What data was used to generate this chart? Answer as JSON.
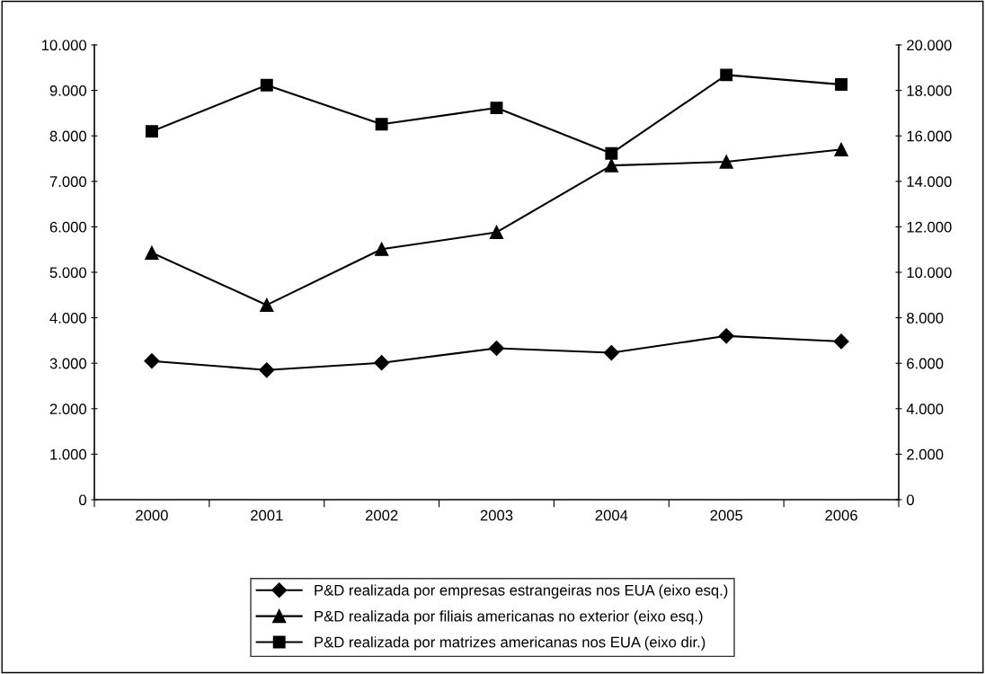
{
  "chart_data": {
    "type": "line",
    "categories": [
      "2000",
      "2001",
      "2002",
      "2003",
      "2004",
      "2005",
      "2006"
    ],
    "series": [
      {
        "name": "P&D realizada por empresas estrangeiras nos EUA (eixo esq.)",
        "color": "#000000",
        "marker": "diamond",
        "values": [
          3050,
          2850,
          3010,
          3330,
          3230,
          3600,
          3480
        ]
      },
      {
        "name": "P&D realizada por filiais americanas no exterior (eixo esq.)",
        "color": "#000000",
        "marker": "triangle",
        "values": [
          5430,
          4280,
          5510,
          5880,
          7350,
          7430,
          7700
        ]
      },
      {
        "name": "P&D realizada por matrizes americanas nos EUA (eixo dir.)",
        "color": "#000000",
        "marker": "square",
        "axis": "y2",
        "values": [
          16200,
          18230,
          16510,
          17230,
          15230,
          18680,
          18260
        ]
      }
    ],
    "ylim": [
      0,
      10000
    ],
    "yticks": [
      {
        "value": 0,
        "label": "0"
      },
      {
        "value": 1000,
        "label": "1.000"
      },
      {
        "value": 2000,
        "label": "2.000"
      },
      {
        "value": 3000,
        "label": "3.000"
      },
      {
        "value": 4000,
        "label": "4.000"
      },
      {
        "value": 5000,
        "label": "5.000"
      },
      {
        "value": 6000,
        "label": "6.000"
      },
      {
        "value": 7000,
        "label": "7.000"
      },
      {
        "value": 8000,
        "label": "8.000"
      },
      {
        "value": 9000,
        "label": "9.000"
      },
      {
        "value": 10000,
        "label": "10.000"
      }
    ],
    "y2lim": [
      0,
      20000
    ],
    "y2ticks": [
      {
        "value": 0,
        "label": "0"
      },
      {
        "value": 2000,
        "label": "2.000"
      },
      {
        "value": 4000,
        "label": "4.000"
      },
      {
        "value": 6000,
        "label": "6.000"
      },
      {
        "value": 8000,
        "label": "8.000"
      },
      {
        "value": 10000,
        "label": "10.000"
      },
      {
        "value": 12000,
        "label": "12.000"
      },
      {
        "value": 14000,
        "label": "14.000"
      },
      {
        "value": 16000,
        "label": "16.000"
      },
      {
        "value": 18000,
        "label": "18.000"
      },
      {
        "value": 20000,
        "label": "20.000"
      }
    ],
    "grid": false,
    "legend": "bottom",
    "line_style": "solid"
  }
}
